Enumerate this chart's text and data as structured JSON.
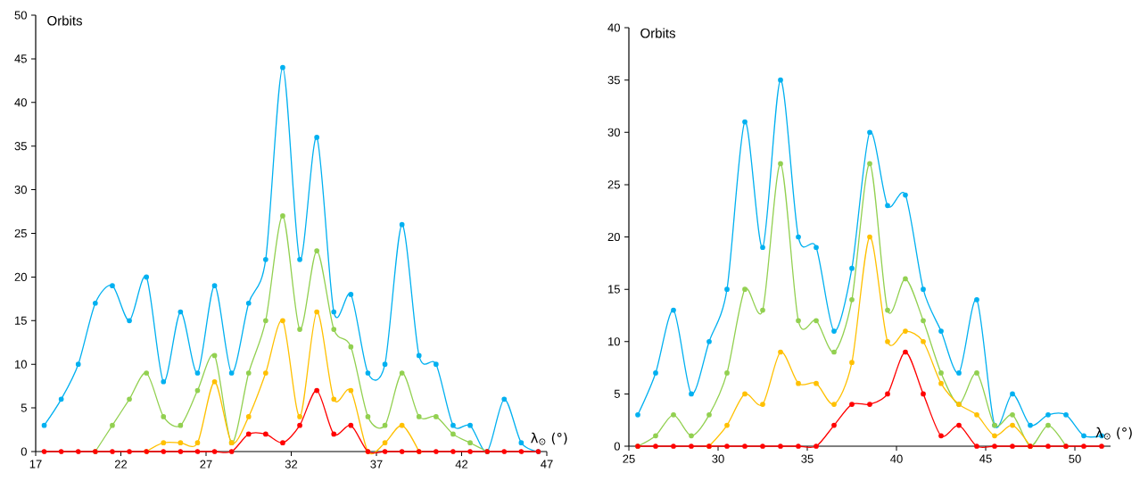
{
  "chart_data": [
    {
      "type": "line",
      "ylabel": "Orbits",
      "xlabel": "λ$_{⊙}$ (°)",
      "marker": "circle",
      "xlim": [
        17,
        47
      ],
      "ylim": [
        0,
        50
      ],
      "xticks": [
        17,
        22,
        27,
        32,
        37,
        42,
        47
      ],
      "yticks": [
        0,
        5,
        10,
        15,
        20,
        25,
        30,
        35,
        40,
        45,
        50
      ],
      "x": [
        17.5,
        18.5,
        19.5,
        20.5,
        21.5,
        22.5,
        23.5,
        24.5,
        25.5,
        26.5,
        27.5,
        28.5,
        29.5,
        30.5,
        31.5,
        32.5,
        33.5,
        34.5,
        35.5,
        36.5,
        37.5,
        38.5,
        39.5,
        40.5,
        41.5,
        42.5,
        43.5,
        44.5,
        45.5,
        46.5
      ],
      "series": [
        {
          "color": "#00b0f0",
          "values": [
            3,
            6,
            10,
            17,
            19,
            15,
            20,
            8,
            16,
            9,
            19,
            9,
            17,
            22,
            44,
            22,
            36,
            16,
            18,
            9,
            10,
            26,
            11,
            10,
            3,
            3,
            0,
            6,
            1,
            0
          ]
        },
        {
          "color": "#92d050",
          "values": [
            null,
            null,
            null,
            0,
            3,
            6,
            9,
            4,
            3,
            7,
            11,
            1,
            9,
            15,
            27,
            14,
            23,
            14,
            12,
            4,
            3,
            9,
            4,
            4,
            2,
            1,
            0,
            null,
            null,
            null
          ]
        },
        {
          "color": "#ffc000",
          "values": [
            null,
            null,
            null,
            null,
            null,
            null,
            0,
            1,
            1,
            1,
            8,
            1,
            4,
            9,
            15,
            4,
            16,
            6,
            7,
            0,
            1,
            3,
            0,
            null,
            null,
            null,
            null,
            null,
            null,
            null
          ]
        },
        {
          "color": "#ff0000",
          "values": [
            0,
            0,
            0,
            0,
            0,
            0,
            0,
            0,
            0,
            0,
            0,
            0,
            2,
            2,
            1,
            3,
            7,
            2,
            3,
            0,
            0,
            0,
            0,
            0,
            0,
            0,
            0,
            0,
            0,
            0
          ]
        }
      ]
    },
    {
      "type": "line",
      "ylabel": "Orbits",
      "xlabel": "λ$_{⊙}$ (°)",
      "marker": "circle",
      "xlim": [
        25,
        52
      ],
      "ylim": [
        0,
        40
      ],
      "xticks": [
        25,
        30,
        35,
        40,
        45,
        50
      ],
      "yticks": [
        0,
        5,
        10,
        15,
        20,
        25,
        30,
        35,
        40
      ],
      "x": [
        25.5,
        26.5,
        27.5,
        28.5,
        29.5,
        30.5,
        31.5,
        32.5,
        33.5,
        34.5,
        35.5,
        36.5,
        37.5,
        38.5,
        39.5,
        40.5,
        41.5,
        42.5,
        43.5,
        44.5,
        45.5,
        46.5,
        47.5,
        48.5,
        49.5,
        50.5,
        51.5
      ],
      "series": [
        {
          "color": "#00b0f0",
          "values": [
            3,
            7,
            13,
            5,
            10,
            15,
            31,
            19,
            35,
            20,
            19,
            11,
            17,
            30,
            23,
            24,
            15,
            11,
            7,
            14,
            2,
            5,
            2,
            3,
            3,
            1,
            1
          ]
        },
        {
          "color": "#92d050",
          "values": [
            0,
            1,
            3,
            1,
            3,
            7,
            15,
            13,
            27,
            12,
            12,
            9,
            14,
            27,
            13,
            16,
            12,
            7,
            4,
            7,
            2,
            3,
            0,
            2,
            0,
            null,
            null
          ]
        },
        {
          "color": "#ffc000",
          "values": [
            null,
            null,
            null,
            null,
            0,
            2,
            5,
            4,
            9,
            6,
            6,
            4,
            8,
            20,
            10,
            11,
            10,
            6,
            4,
            3,
            1,
            2,
            0,
            null,
            null,
            null,
            null
          ]
        },
        {
          "color": "#ff0000",
          "values": [
            0,
            0,
            0,
            0,
            0,
            0,
            0,
            0,
            0,
            0,
            0,
            2,
            4,
            4,
            5,
            9,
            5,
            1,
            2,
            0,
            0,
            0,
            0,
            0,
            0,
            0,
            0
          ]
        }
      ]
    }
  ]
}
